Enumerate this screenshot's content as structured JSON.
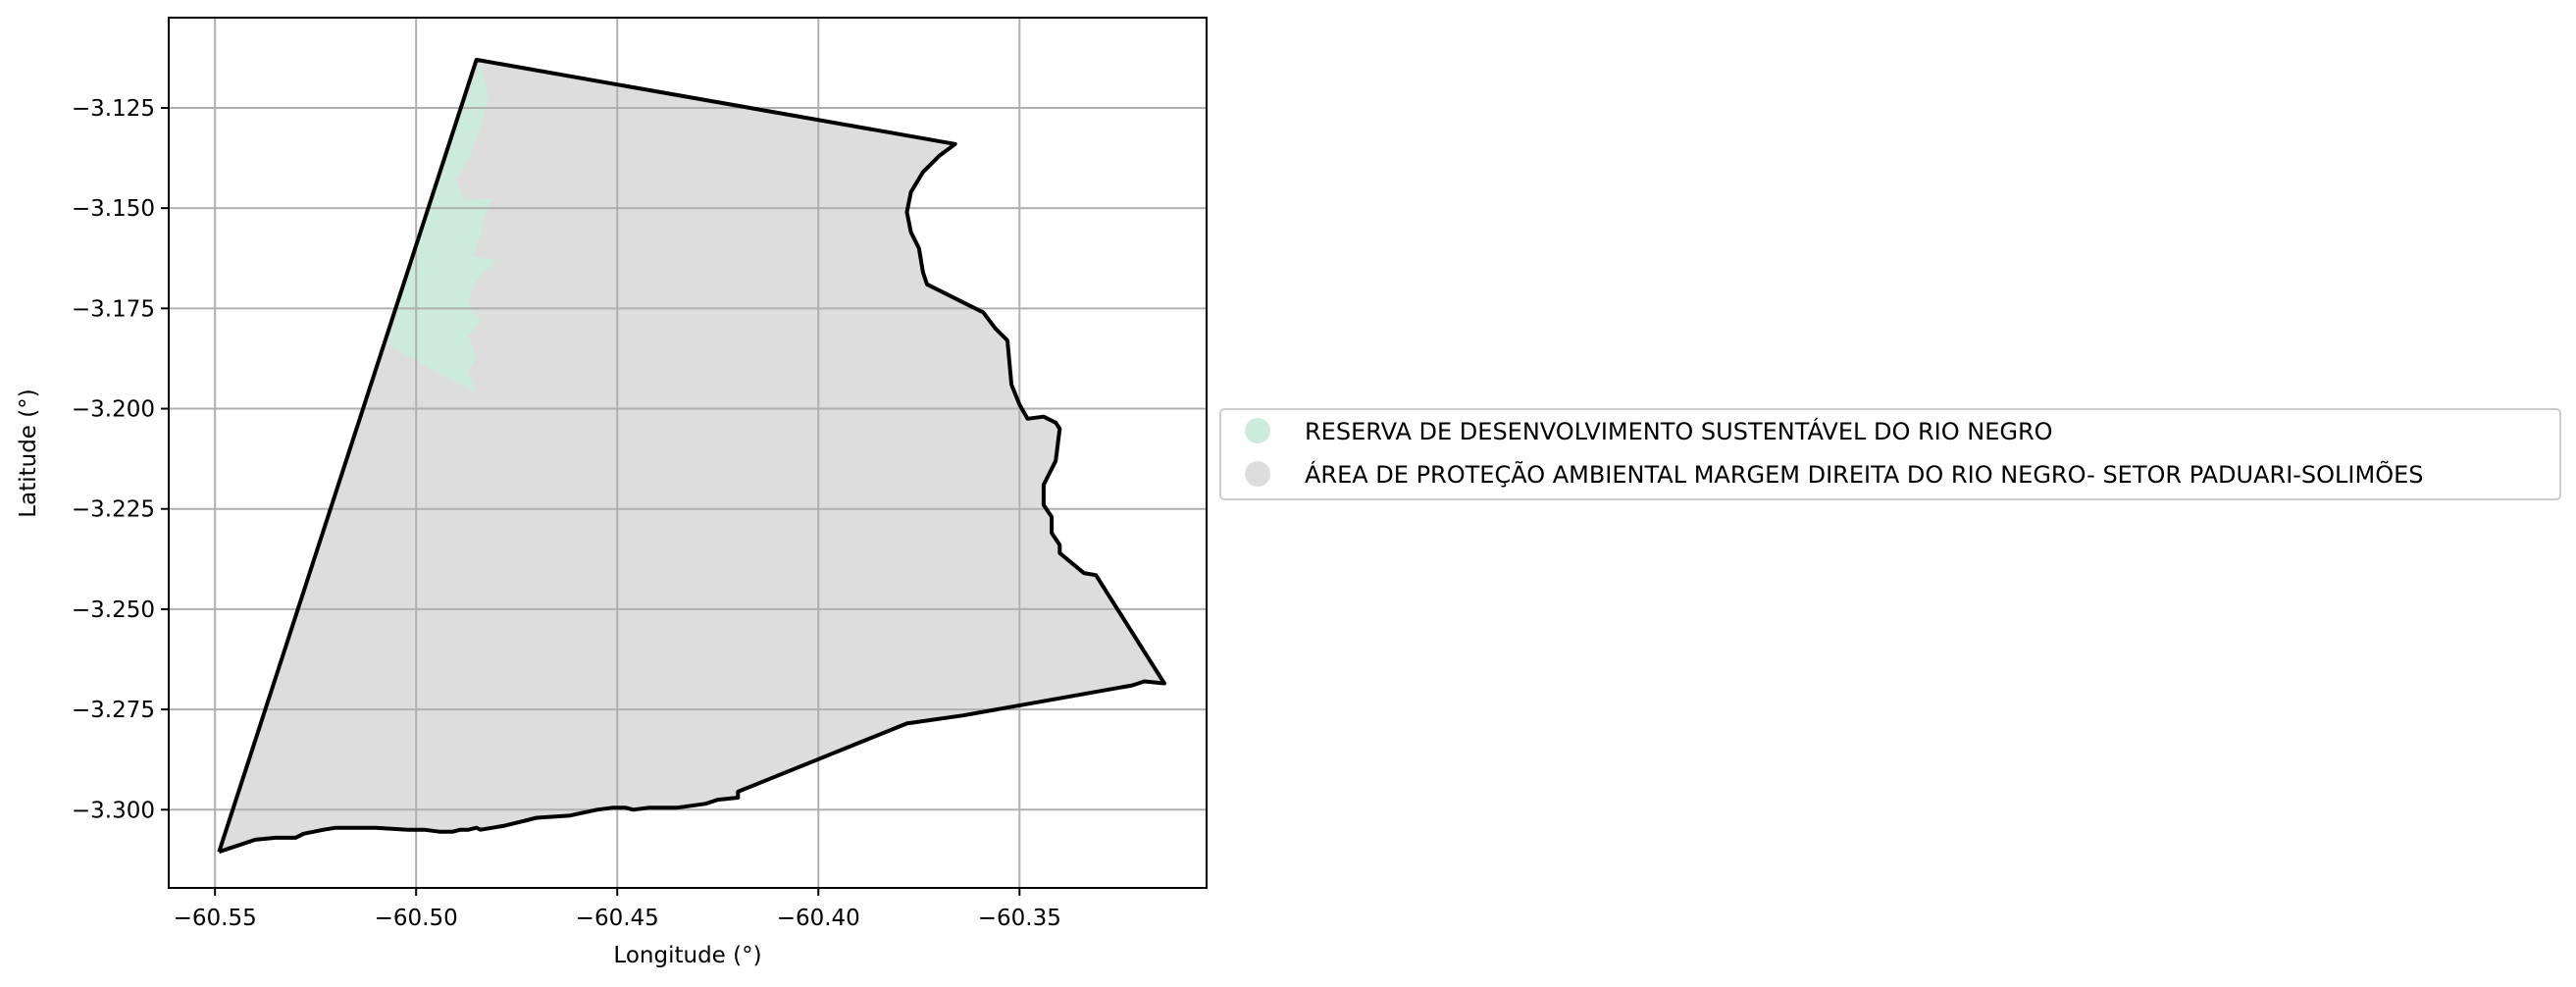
{
  "chart_data": {
    "type": "map",
    "xlabel": "Longitude (°)",
    "ylabel": "Latitude (°)",
    "xlim": [
      -60.5615,
      -60.3035
    ],
    "ylim": [
      -3.3195,
      -3.1025
    ],
    "xticks": [
      -60.55,
      -60.5,
      -60.45,
      -60.4,
      -60.35
    ],
    "xtick_labels": [
      "−60.55",
      "−60.50",
      "−60.45",
      "−60.40",
      "−60.35"
    ],
    "yticks": [
      -3.125,
      -3.15,
      -3.175,
      -3.2,
      -3.225,
      -3.25,
      -3.275,
      -3.3
    ],
    "ytick_labels": [
      "−3.125",
      "−3.150",
      "−3.175",
      "−3.200",
      "−3.225",
      "−3.250",
      "−3.275",
      "−3.300"
    ],
    "grid": true,
    "legend_position": "right-outside",
    "areas": [
      {
        "name": "RESERVA DE DESENVOLVIMENTO SUSTENTÁVEL DO RIO NEGRO",
        "color": "#ccebdd",
        "coords": [
          [
            -60.484,
            -3.114
          ],
          [
            -60.482,
            -3.122
          ],
          [
            -60.484,
            -3.13
          ],
          [
            -60.487,
            -3.138
          ],
          [
            -60.49,
            -3.143
          ],
          [
            -60.488,
            -3.148
          ],
          [
            -60.481,
            -3.1475
          ],
          [
            -60.483,
            -3.152
          ],
          [
            -60.484,
            -3.157
          ],
          [
            -60.486,
            -3.162
          ],
          [
            -60.48,
            -3.163
          ],
          [
            -60.485,
            -3.168
          ],
          [
            -60.487,
            -3.173
          ],
          [
            -60.484,
            -3.178
          ],
          [
            -60.487,
            -3.182
          ],
          [
            -60.485,
            -3.187
          ],
          [
            -60.487,
            -3.191
          ],
          [
            -60.485,
            -3.196
          ],
          [
            -60.495,
            -3.191
          ],
          [
            -60.507,
            -3.184
          ],
          [
            -60.495,
            -3.143
          ]
        ]
      },
      {
        "name": "ÁREA DE PROTEÇÃO AMBIENTAL MARGEM DIREITA DO RIO NEGRO- SETOR PADUARI-SOLIMÕES",
        "color": "#dddddd",
        "coords": [
          [
            -60.549,
            -3.3105
          ],
          [
            -60.485,
            -3.113
          ],
          [
            -60.366,
            -3.134
          ],
          [
            -60.37,
            -3.137
          ],
          [
            -60.374,
            -3.141
          ],
          [
            -60.377,
            -3.146
          ],
          [
            -60.378,
            -3.151
          ],
          [
            -60.377,
            -3.156
          ],
          [
            -60.375,
            -3.16
          ],
          [
            -60.374,
            -3.166
          ],
          [
            -60.373,
            -3.169
          ],
          [
            -60.367,
            -3.172
          ],
          [
            -60.363,
            -3.174
          ],
          [
            -60.359,
            -3.176
          ],
          [
            -60.356,
            -3.18
          ],
          [
            -60.353,
            -3.183
          ],
          [
            -60.352,
            -3.194
          ],
          [
            -60.35,
            -3.199
          ],
          [
            -60.348,
            -3.2025
          ],
          [
            -60.344,
            -3.202
          ],
          [
            -60.341,
            -3.2035
          ],
          [
            -60.34,
            -3.205
          ],
          [
            -60.341,
            -3.213
          ],
          [
            -60.343,
            -3.217
          ],
          [
            -60.344,
            -3.219
          ],
          [
            -60.344,
            -3.224
          ],
          [
            -60.342,
            -3.227
          ],
          [
            -60.342,
            -3.231
          ],
          [
            -60.34,
            -3.234
          ],
          [
            -60.34,
            -3.236
          ],
          [
            -60.334,
            -3.241
          ],
          [
            -60.331,
            -3.2415
          ],
          [
            -60.314,
            -3.2685
          ],
          [
            -60.319,
            -3.268
          ],
          [
            -60.322,
            -3.269
          ],
          [
            -60.364,
            -3.2765
          ],
          [
            -60.378,
            -3.2785
          ],
          [
            -60.42,
            -3.2955
          ],
          [
            -60.42,
            -3.297
          ],
          [
            -60.425,
            -3.2975
          ],
          [
            -60.428,
            -3.2985
          ],
          [
            -60.435,
            -3.2995
          ],
          [
            -60.442,
            -3.2995
          ],
          [
            -60.446,
            -3.3
          ],
          [
            -60.448,
            -3.2995
          ],
          [
            -60.451,
            -3.2995
          ],
          [
            -60.455,
            -3.3
          ],
          [
            -60.462,
            -3.3015
          ],
          [
            -60.47,
            -3.302
          ],
          [
            -60.474,
            -3.303
          ],
          [
            -60.478,
            -3.304
          ],
          [
            -60.481,
            -3.3045
          ],
          [
            -60.484,
            -3.305
          ],
          [
            -60.485,
            -3.3045
          ],
          [
            -60.487,
            -3.305
          ],
          [
            -60.489,
            -3.305
          ],
          [
            -60.491,
            -3.3055
          ],
          [
            -60.494,
            -3.3055
          ],
          [
            -60.498,
            -3.305
          ],
          [
            -60.502,
            -3.305
          ],
          [
            -60.51,
            -3.3045
          ],
          [
            -60.52,
            -3.3045
          ],
          [
            -60.523,
            -3.305
          ],
          [
            -60.528,
            -3.306
          ],
          [
            -60.53,
            -3.307
          ],
          [
            -60.535,
            -3.307
          ],
          [
            -60.54,
            -3.3075
          ]
        ]
      }
    ],
    "boundary": {
      "color": "#000000",
      "coords": [
        [
          -60.549,
          -3.3105
        ],
        [
          -60.485,
          -3.113
        ],
        [
          -60.366,
          -3.134
        ],
        [
          -60.37,
          -3.137
        ],
        [
          -60.374,
          -3.141
        ],
        [
          -60.377,
          -3.146
        ],
        [
          -60.378,
          -3.151
        ],
        [
          -60.377,
          -3.156
        ],
        [
          -60.375,
          -3.16
        ],
        [
          -60.374,
          -3.166
        ],
        [
          -60.373,
          -3.169
        ],
        [
          -60.367,
          -3.172
        ],
        [
          -60.363,
          -3.174
        ],
        [
          -60.359,
          -3.176
        ],
        [
          -60.356,
          -3.18
        ],
        [
          -60.353,
          -3.183
        ],
        [
          -60.352,
          -3.194
        ],
        [
          -60.35,
          -3.199
        ],
        [
          -60.348,
          -3.2025
        ],
        [
          -60.344,
          -3.202
        ],
        [
          -60.341,
          -3.2035
        ],
        [
          -60.34,
          -3.205
        ],
        [
          -60.341,
          -3.213
        ],
        [
          -60.343,
          -3.217
        ],
        [
          -60.344,
          -3.219
        ],
        [
          -60.344,
          -3.224
        ],
        [
          -60.342,
          -3.227
        ],
        [
          -60.342,
          -3.231
        ],
        [
          -60.34,
          -3.234
        ],
        [
          -60.34,
          -3.236
        ],
        [
          -60.334,
          -3.241
        ],
        [
          -60.331,
          -3.2415
        ],
        [
          -60.314,
          -3.2685
        ],
        [
          -60.319,
          -3.268
        ],
        [
          -60.322,
          -3.269
        ],
        [
          -60.364,
          -3.2765
        ],
        [
          -60.378,
          -3.2785
        ],
        [
          -60.42,
          -3.2955
        ],
        [
          -60.42,
          -3.297
        ],
        [
          -60.425,
          -3.2975
        ],
        [
          -60.428,
          -3.2985
        ],
        [
          -60.435,
          -3.2995
        ],
        [
          -60.442,
          -3.2995
        ],
        [
          -60.446,
          -3.3
        ],
        [
          -60.448,
          -3.2995
        ],
        [
          -60.451,
          -3.2995
        ],
        [
          -60.455,
          -3.3
        ],
        [
          -60.462,
          -3.3015
        ],
        [
          -60.47,
          -3.302
        ],
        [
          -60.474,
          -3.303
        ],
        [
          -60.478,
          -3.304
        ],
        [
          -60.481,
          -3.3045
        ],
        [
          -60.484,
          -3.305
        ],
        [
          -60.485,
          -3.3045
        ],
        [
          -60.487,
          -3.305
        ],
        [
          -60.489,
          -3.305
        ],
        [
          -60.491,
          -3.3055
        ],
        [
          -60.494,
          -3.3055
        ],
        [
          -60.498,
          -3.305
        ],
        [
          -60.502,
          -3.305
        ],
        [
          -60.51,
          -3.3045
        ],
        [
          -60.52,
          -3.3045
        ],
        [
          -60.523,
          -3.305
        ],
        [
          -60.528,
          -3.306
        ],
        [
          -60.53,
          -3.307
        ],
        [
          -60.535,
          -3.307
        ],
        [
          -60.54,
          -3.3075
        ],
        [
          -60.549,
          -3.3105
        ]
      ]
    }
  }
}
